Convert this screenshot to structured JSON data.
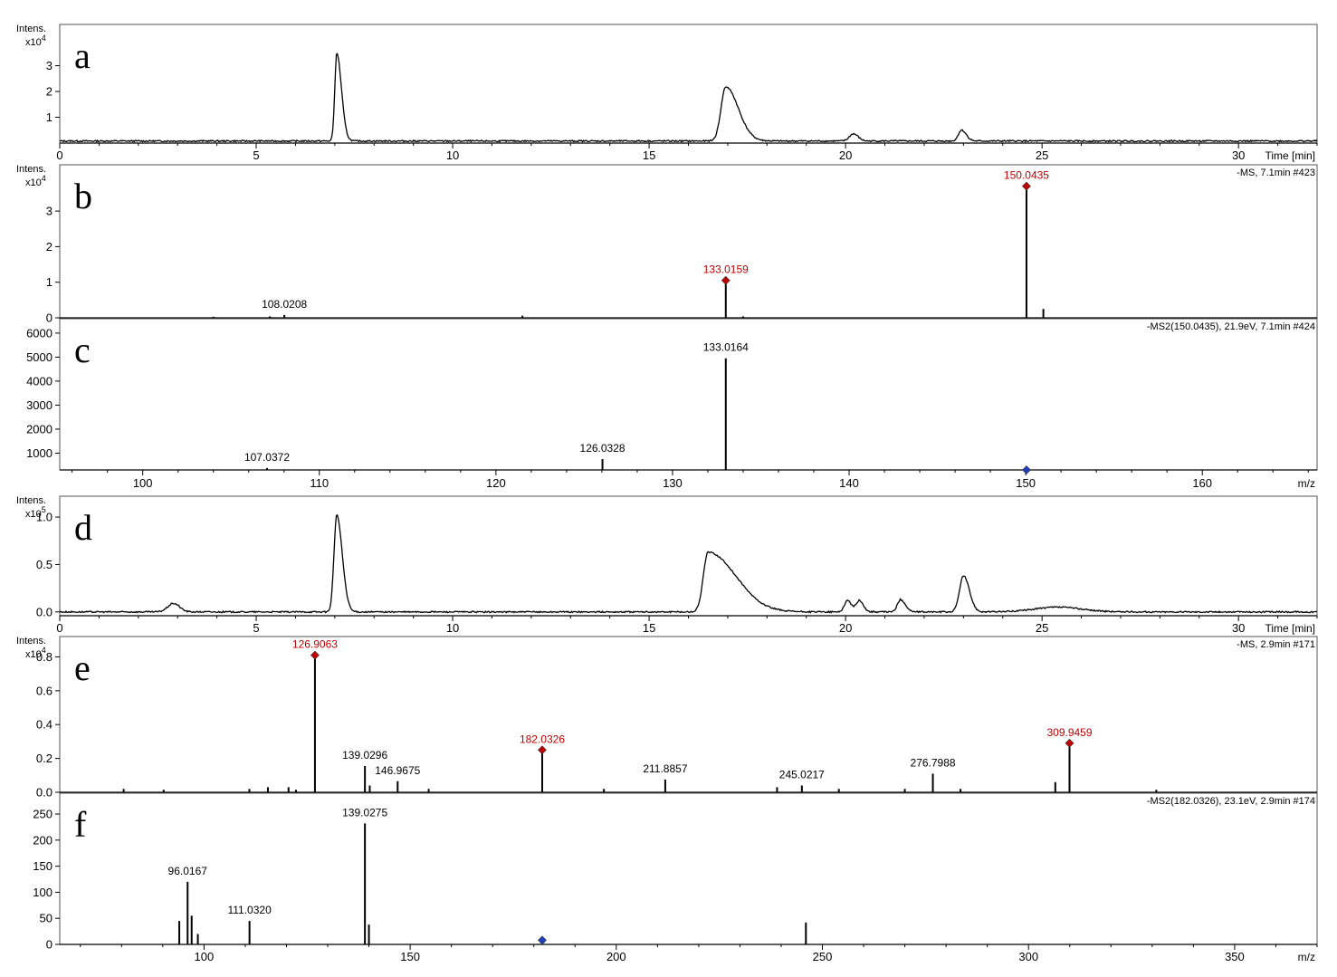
{
  "chart_data": [
    {
      "id": "a",
      "type": "line",
      "letter": "a",
      "intens_label": "Intens.",
      "scale_label": "x10",
      "scale_exp": "4",
      "xlim": [
        0,
        32
      ],
      "ylim": [
        0,
        4.6
      ],
      "xticks": [
        0,
        5,
        10,
        15,
        20,
        25,
        30
      ],
      "yticks": [
        1,
        2,
        3
      ],
      "xlabel": "Time [min]",
      "scan_info": "",
      "baseline": 0.08,
      "peaks": [
        {
          "x": 7.05,
          "h": 3.4,
          "wl": 0.05,
          "wr": 0.12
        },
        {
          "x": 16.95,
          "h": 2.1,
          "wl": 0.12,
          "wr": 0.32
        },
        {
          "x": 20.2,
          "h": 0.28,
          "wl": 0.1,
          "wr": 0.12
        },
        {
          "x": 22.95,
          "h": 0.42,
          "wl": 0.08,
          "wr": 0.12
        }
      ]
    },
    {
      "id": "b",
      "type": "bar",
      "letter": "b",
      "intens_label": "Intens.",
      "scale_label": "x10",
      "scale_exp": "4",
      "xlim": [
        95.3,
        166.5
      ],
      "ylim": [
        0,
        4.3
      ],
      "xticks": [],
      "yticks": [
        0,
        1,
        2,
        3
      ],
      "xlabel": "",
      "scan_info": "-MS, 7.1min #423",
      "sticks": [
        {
          "x": 104,
          "y": 0.03
        },
        {
          "x": 107.2,
          "y": 0.04
        },
        {
          "x": 108.0208,
          "y": 0.08,
          "label": "108.0208",
          "color": "#000000"
        },
        {
          "x": 121.5,
          "y": 0.06
        },
        {
          "x": 133.0159,
          "y": 1.05,
          "label": "133.0159",
          "color": "#c00000",
          "marker": "#c00000"
        },
        {
          "x": 134.0,
          "y": 0.04
        },
        {
          "x": 150.0435,
          "y": 3.7,
          "label": "150.0435",
          "color": "#c00000",
          "marker": "#c00000"
        },
        {
          "x": 151.0,
          "y": 0.25
        }
      ]
    },
    {
      "id": "c",
      "type": "bar",
      "letter": "c",
      "intens_label": "",
      "scale_label": "",
      "scale_exp": "",
      "xlim": [
        95.3,
        166.5
      ],
      "ylim": [
        300,
        6600
      ],
      "xticks": [
        100,
        110,
        120,
        130,
        140,
        150,
        160
      ],
      "yticks": [
        1000,
        2000,
        3000,
        4000,
        5000,
        6000
      ],
      "xlabel": "m/z",
      "scan_info": "-MS2(150.0435), 21.9eV, 7.1min #424",
      "sticks": [
        {
          "x": 107.0372,
          "y": 380,
          "label": "107.0372",
          "color": "#000000"
        },
        {
          "x": 126.0328,
          "y": 750,
          "label": "126.0328",
          "color": "#000000"
        },
        {
          "x": 133.0164,
          "y": 4950,
          "label": "133.0164",
          "color": "#000000"
        },
        {
          "x": 150.0435,
          "y": 300,
          "marker": "#1f3fbf"
        }
      ]
    },
    {
      "id": "d",
      "type": "line",
      "letter": "d",
      "intens_label": "Intens.",
      "scale_label": "x10",
      "scale_exp": "5",
      "xlim": [
        0,
        32
      ],
      "ylim": [
        -0.04,
        1.22
      ],
      "xticks": [
        0,
        5,
        10,
        15,
        20,
        25,
        30
      ],
      "yticks": [
        0.0,
        0.5,
        1.0
      ],
      "xlabel": "Time [min]",
      "scan_info": "",
      "baseline": 0.0,
      "peaks": [
        {
          "x": 2.9,
          "h": 0.09,
          "wl": 0.15,
          "wr": 0.15
        },
        {
          "x": 7.05,
          "h": 1.02,
          "wl": 0.07,
          "wr": 0.14
        },
        {
          "x": 16.5,
          "h": 0.63,
          "wl": 0.12,
          "wr": 0.7
        },
        {
          "x": 20.05,
          "h": 0.12,
          "wl": 0.08,
          "wr": 0.1
        },
        {
          "x": 20.35,
          "h": 0.12,
          "wl": 0.08,
          "wr": 0.1
        },
        {
          "x": 21.4,
          "h": 0.13,
          "wl": 0.08,
          "wr": 0.12
        },
        {
          "x": 23.0,
          "h": 0.38,
          "wl": 0.1,
          "wr": 0.15
        },
        {
          "x": 25.4,
          "h": 0.05,
          "wl": 0.6,
          "wr": 0.6
        }
      ]
    },
    {
      "id": "e",
      "type": "bar",
      "letter": "e",
      "intens_label": "Intens.",
      "scale_label": "x10",
      "scale_exp": "4",
      "xlim": [
        65,
        370
      ],
      "ylim": [
        0,
        0.92
      ],
      "xticks": [],
      "yticks": [
        0.0,
        0.2,
        0.4,
        0.6,
        0.8
      ],
      "xlabel": "",
      "scan_info": "-MS, 2.9min #171",
      "sticks": [
        {
          "x": 80.5,
          "y": 0.02
        },
        {
          "x": 90.2,
          "y": 0.015
        },
        {
          "x": 111,
          "y": 0.02
        },
        {
          "x": 115.5,
          "y": 0.03
        },
        {
          "x": 120.5,
          "y": 0.03
        },
        {
          "x": 122.3,
          "y": 0.015
        },
        {
          "x": 126.9063,
          "y": 0.81,
          "label": "126.9063",
          "color": "#c00000",
          "marker": "#c00000"
        },
        {
          "x": 139.0296,
          "y": 0.155,
          "label": "139.0296",
          "color": "#000000"
        },
        {
          "x": 140.2,
          "y": 0.04
        },
        {
          "x": 146.9675,
          "y": 0.065,
          "label": "146.9675",
          "color": "#000000"
        },
        {
          "x": 154.5,
          "y": 0.02
        },
        {
          "x": 182.0326,
          "y": 0.25,
          "label": "182.0326",
          "color": "#c00000",
          "marker": "#c00000"
        },
        {
          "x": 197.0,
          "y": 0.02
        },
        {
          "x": 211.8857,
          "y": 0.075,
          "label": "211.8857",
          "color": "#000000"
        },
        {
          "x": 239.0,
          "y": 0.03
        },
        {
          "x": 245.0217,
          "y": 0.04,
          "label": "245.0217",
          "color": "#000000"
        },
        {
          "x": 254.0,
          "y": 0.02
        },
        {
          "x": 270.0,
          "y": 0.02
        },
        {
          "x": 276.7988,
          "y": 0.11,
          "label": "276.7988",
          "color": "#000000"
        },
        {
          "x": 283.5,
          "y": 0.02
        },
        {
          "x": 306.5,
          "y": 0.06
        },
        {
          "x": 309.9459,
          "y": 0.29,
          "label": "309.9459",
          "color": "#c00000",
          "marker": "#c00000"
        },
        {
          "x": 331.0,
          "y": 0.015
        }
      ]
    },
    {
      "id": "f",
      "type": "bar",
      "letter": "f",
      "intens_label": "",
      "scale_label": "",
      "scale_exp": "",
      "xlim": [
        65,
        370
      ],
      "ylim": [
        0,
        290
      ],
      "xticks": [
        100,
        150,
        200,
        250,
        300,
        350
      ],
      "yticks": [
        0,
        50,
        100,
        150,
        200,
        250
      ],
      "xlabel": "m/z",
      "scan_info": "-MS2(182.0326), 23.1eV, 2.9min #174",
      "sticks": [
        {
          "x": 94.0,
          "y": 45
        },
        {
          "x": 96.0167,
          "y": 120,
          "label": "96.0167",
          "color": "#000000"
        },
        {
          "x": 97.0,
          "y": 55
        },
        {
          "x": 98.5,
          "y": 20
        },
        {
          "x": 111.032,
          "y": 45,
          "label": "111.0320",
          "color": "#000000"
        },
        {
          "x": 139.0275,
          "y": 232,
          "label": "139.0275",
          "color": "#000000"
        },
        {
          "x": 140.0,
          "y": 38
        },
        {
          "x": 182.0326,
          "y": 8,
          "marker": "#1f3fbf"
        },
        {
          "x": 246.0,
          "y": 42
        }
      ]
    }
  ]
}
